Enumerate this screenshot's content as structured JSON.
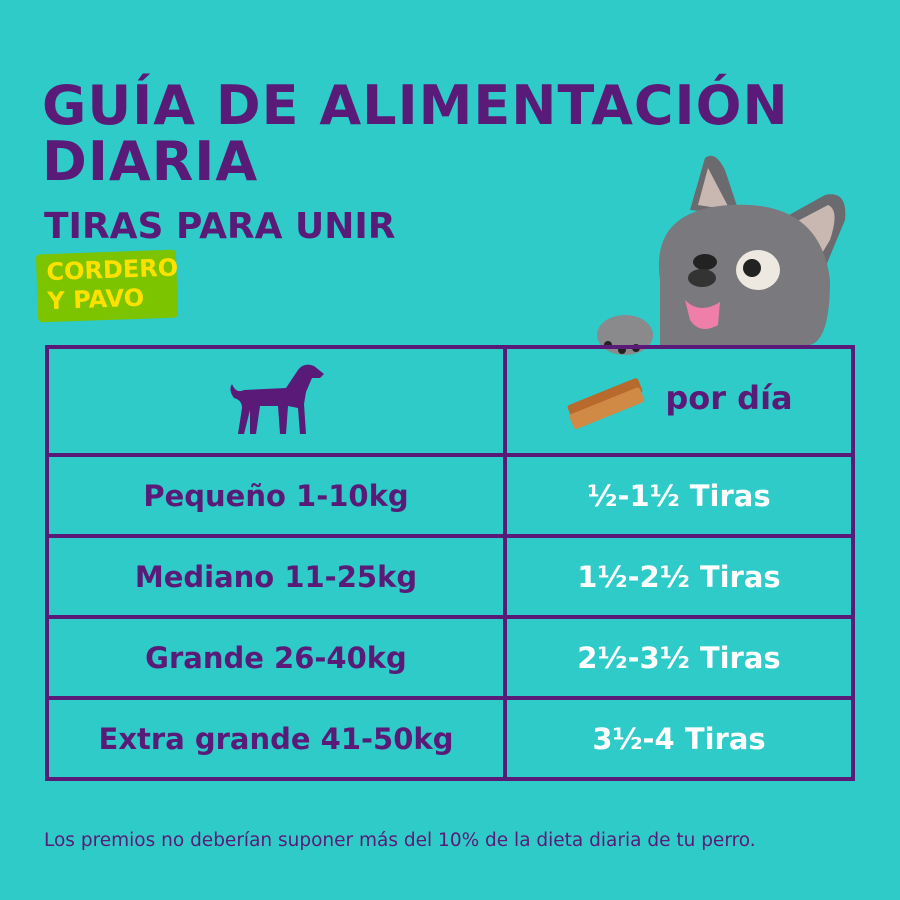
{
  "title_line1": "GUÍA DE ALIMENTACIÓN",
  "title_line2": "DIARIA",
  "subtitle": "TIRAS PARA UNIR",
  "badge": {
    "line1": "CORDERO",
    "line2": "Y PAVO",
    "bg": "#7cc300",
    "fg": "#ffe100"
  },
  "table": {
    "header": {
      "left_icon": "dog-silhouette-icon",
      "right_icon": "treat-strips-icon",
      "right_label": "por día"
    },
    "rows": [
      {
        "size": "Pequeño 1-10kg",
        "amount": "½-1½ Tiras"
      },
      {
        "size": "Mediano 11-25kg",
        "amount": "1½-2½ Tiras"
      },
      {
        "size": "Grande 26-40kg",
        "amount": "2½-3½ Tiras"
      },
      {
        "size": "Extra grande 41-50kg",
        "amount": "3½-4 Tiras"
      }
    ]
  },
  "footer": "Los premios no deberían suponer más del 10% de la dieta diaria de tu perro.",
  "colors": {
    "background": "#2ecbc8",
    "primary": "#5a1a78"
  }
}
